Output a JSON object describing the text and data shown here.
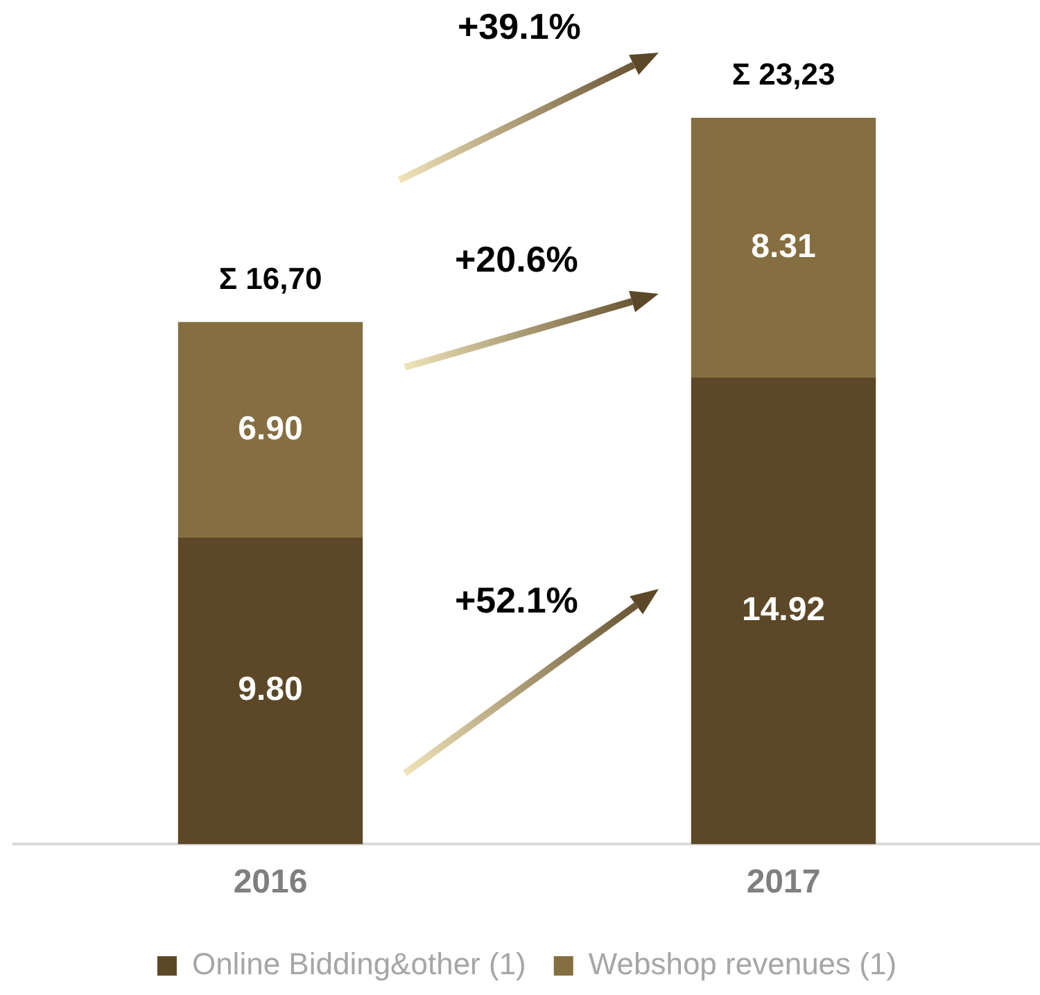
{
  "chart_data": {
    "type": "bar",
    "stacked": true,
    "categories": [
      "2016",
      "2017"
    ],
    "series": [
      {
        "name": "Online Bidding&other (1)",
        "color": "#5c4827",
        "values": [
          9.8,
          14.92
        ],
        "value_labels": [
          "9.80",
          "14.92"
        ]
      },
      {
        "name": "Webshop revenues (1)",
        "color": "#856e40",
        "values": [
          6.9,
          8.31
        ],
        "value_labels": [
          "6.90",
          "8.31"
        ]
      }
    ],
    "totals": [
      "Σ 16,70",
      "Σ 23,23"
    ],
    "annotations": [
      "+39.1%",
      "+20.6%",
      "+52.1%"
    ],
    "legend": "bottom",
    "grid": false
  }
}
